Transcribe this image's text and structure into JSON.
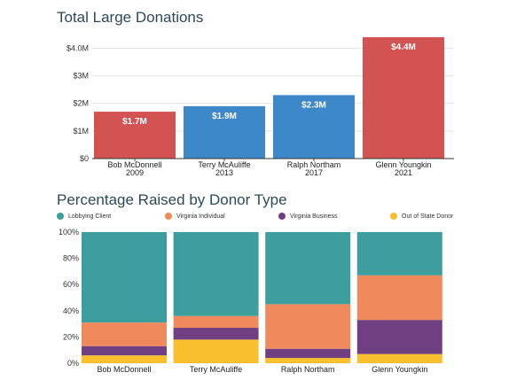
{
  "charts": {
    "totals_title": "Total Large Donations",
    "pct_title": "Percentage Raised by Donor Type"
  },
  "chart_data": [
    {
      "type": "bar",
      "title": "Total Large Donations",
      "categories": [
        "Bob McDonnell",
        "Terry McAuliffe",
        "Ralph Northam",
        "Glenn Youngkin"
      ],
      "years": [
        "2009",
        "2013",
        "2017",
        "2021"
      ],
      "values": [
        1.7,
        1.9,
        2.3,
        4.4
      ],
      "value_labels": [
        "$1.7M",
        "$1.9M",
        "$2.3M",
        "$4.4M"
      ],
      "colors": [
        "#d35353",
        "#3d88c8",
        "#3d88c8",
        "#d35353"
      ],
      "ylim": [
        0,
        4.4
      ],
      "yticks": [
        0,
        1,
        2,
        3,
        4
      ],
      "ytick_labels": [
        "$0",
        "$1M",
        "$2M",
        "$3M",
        "$4.0M"
      ],
      "unit": "millions USD"
    },
    {
      "type": "bar",
      "stacked": true,
      "percent": true,
      "title": "Percentage Raised by Donor Type",
      "categories": [
        "Bob McDonnell",
        "Terry McAuliffe",
        "Ralph Northam",
        "Glenn Youngkin"
      ],
      "ylim": [
        0,
        100
      ],
      "yticks": [
        0,
        20,
        40,
        60,
        80,
        100
      ],
      "ytick_labels": [
        "0%",
        "20%",
        "40%",
        "60%",
        "80%",
        "100%"
      ],
      "legend_position": "top",
      "series": [
        {
          "name": "Out of State Donor",
          "color": "#f9bf2c",
          "values": [
            6,
            18,
            4,
            7
          ]
        },
        {
          "name": "Virginia Business",
          "color": "#6f3f82",
          "values": [
            7,
            9,
            7,
            26
          ]
        },
        {
          "name": "Virginia Individual",
          "color": "#f0895c",
          "values": [
            18,
            9,
            34,
            34
          ]
        },
        {
          "name": "Lobbying Client",
          "color": "#3d9e9d",
          "values": [
            69,
            64,
            55,
            33
          ]
        }
      ],
      "legend_order": [
        "Lobbying Client",
        "Virginia Individual",
        "Virginia Business",
        "Out of State Donor"
      ]
    }
  ]
}
